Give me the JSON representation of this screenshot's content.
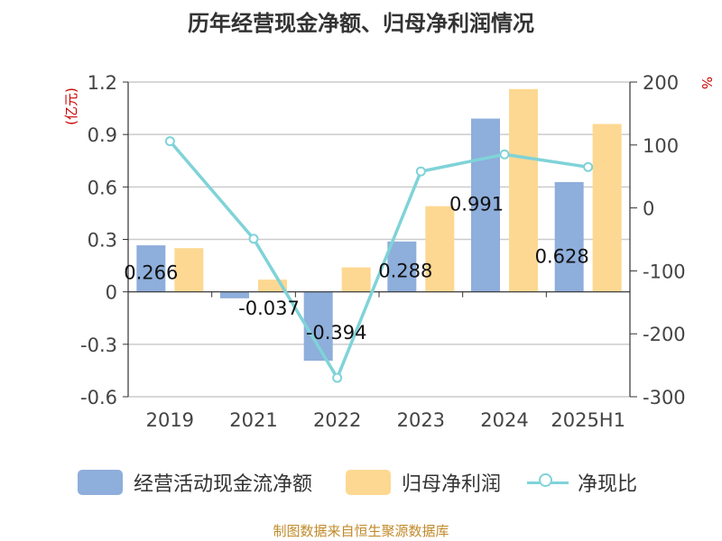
{
  "chart_data": {
    "type": "bar",
    "title": "历年经营现金净额、归母净利润情况",
    "categories": [
      "2019",
      "2021",
      "2022",
      "2023",
      "2024",
      "2025H1"
    ],
    "left_axis": {
      "unit": "(亿元)",
      "min": -0.6,
      "max": 1.2,
      "ticks": [
        "1.2",
        "0.9",
        "0.6",
        "0.3",
        "0",
        "-0.3",
        "-0.6"
      ]
    },
    "right_axis": {
      "unit": "%",
      "min": -300,
      "max": 200,
      "ticks": [
        "200",
        "100",
        "0",
        "-100",
        "-200",
        "-300"
      ]
    },
    "series": [
      {
        "name": "经营活动现金流净额",
        "kind": "bar",
        "axis": "left",
        "color": "#8eaedb",
        "values": [
          0.266,
          -0.037,
          -0.394,
          0.288,
          0.991,
          0.628
        ],
        "labels": [
          "0.266",
          "-0.037",
          "-0.394",
          "0.288",
          "0.991",
          "0.628"
        ]
      },
      {
        "name": "归母净利润",
        "kind": "bar",
        "axis": "left",
        "color": "#fdd892",
        "values": [
          0.25,
          0.07,
          0.14,
          0.49,
          1.16,
          0.96
        ]
      },
      {
        "name": "净现比",
        "kind": "line",
        "axis": "right",
        "color": "#7fd3d8",
        "values": [
          106,
          -49,
          -270,
          58,
          85,
          65
        ]
      }
    ],
    "grid": true,
    "legend_position": "bottom"
  },
  "legend": [
    "经营活动现金流净额",
    "归母净利润",
    "净现比"
  ],
  "source": "制图数据来自恒生聚源数据库"
}
